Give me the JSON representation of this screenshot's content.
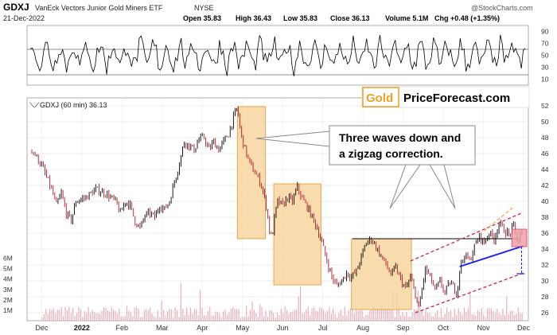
{
  "header": {
    "symbol": "GDXJ",
    "name": "VanEck Vectors Junior Gold Miners ETF",
    "exchange": "NYSE",
    "date": "21-Dec-2022",
    "open": "Open 35.83",
    "high": "High 36.43",
    "low": "Low 35.83",
    "close": "Close 36.13",
    "volume": "Volume 5.1M",
    "change": "Chg +0.48 (+1.35%)",
    "credit": "@StockCharts.com"
  },
  "legend": "GDXJ (60 min) 36.13",
  "logo": {
    "part1": "Gold",
    "part2": "PriceForecast.com"
  },
  "annotation": {
    "line1": "Three waves down and",
    "line2": "a zigzag correction."
  },
  "colors": {
    "box_fill": "#f8d6a0",
    "box_stroke": "#e39a2e",
    "up_candle": "#000000",
    "down_candle": "#b0182a",
    "support_line": "#1a1aff",
    "channel_line": "#cc2244",
    "projection": "#f6a23c",
    "target_box": "#f0a0a8",
    "volume_bar": "#e8b0b8"
  },
  "chart_data": [
    {
      "type": "line",
      "panel": "RSI indicator",
      "y_ticks": [
        10,
        30,
        50,
        70,
        90
      ],
      "guide_levels": [
        30,
        70
      ],
      "ylim": [
        0,
        100
      ]
    },
    {
      "type": "candlestick",
      "panel": "price",
      "x_labels": [
        "Dec",
        "2022",
        "Feb",
        "Mar",
        "Apr",
        "May",
        "Jun",
        "Jul",
        "Aug",
        "Sep",
        "Oct",
        "Nov",
        "Dec"
      ],
      "y_ticks": [
        26,
        28,
        30,
        32,
        34,
        36,
        38,
        40,
        42,
        44,
        46,
        48,
        50,
        52
      ],
      "ylim": [
        25,
        53
      ],
      "xlim": [
        0,
        100
      ],
      "price_path": [
        [
          0,
          46.5
        ],
        [
          2,
          44.5
        ],
        [
          4,
          41.5
        ],
        [
          5,
          39.5
        ],
        [
          6,
          41
        ],
        [
          7,
          38.5
        ],
        [
          8,
          37.6
        ],
        [
          9,
          40
        ],
        [
          11,
          40.5
        ],
        [
          13,
          41.5
        ],
        [
          15,
          41
        ],
        [
          17,
          40
        ],
        [
          18,
          38.5
        ],
        [
          19,
          40
        ],
        [
          20,
          39.5
        ],
        [
          21,
          37.5
        ],
        [
          22,
          36.6
        ],
        [
          23,
          38.2
        ],
        [
          24,
          38.5
        ],
        [
          25,
          38
        ],
        [
          26,
          39.5
        ],
        [
          27,
          39
        ],
        [
          28,
          40
        ],
        [
          29,
          42.5
        ],
        [
          30,
          44.8
        ],
        [
          31,
          47.5
        ],
        [
          33,
          46.5
        ],
        [
          34,
          47.8
        ],
        [
          35,
          48
        ],
        [
          36,
          46.5
        ],
        [
          37,
          47.5
        ],
        [
          38,
          46.5
        ],
        [
          39,
          47.5
        ],
        [
          40,
          48.5
        ],
        [
          41,
          50.5
        ],
        [
          41.8,
          51.8
        ],
        [
          42.5,
          48.5
        ],
        [
          43.5,
          46.2
        ],
        [
          44.5,
          44.5
        ],
        [
          45.5,
          43.5
        ],
        [
          46.5,
          42.3
        ],
        [
          47.2,
          40.8
        ],
        [
          47.8,
          39
        ],
        [
          48.4,
          36
        ],
        [
          48.8,
          35.4
        ],
        [
          49.5,
          38.5
        ],
        [
          50,
          40
        ],
        [
          51,
          39.5
        ],
        [
          52,
          40.5
        ],
        [
          53,
          40
        ],
        [
          54,
          41.8
        ],
        [
          55,
          40.3
        ],
        [
          56,
          39.3
        ],
        [
          57,
          38
        ],
        [
          58,
          36.6
        ],
        [
          59,
          34.8
        ],
        [
          60,
          32.5
        ],
        [
          61,
          30.5
        ],
        [
          62,
          29.4
        ],
        [
          63,
          30
        ],
        [
          64,
          31
        ],
        [
          65,
          30.5
        ],
        [
          66,
          31.2
        ],
        [
          67,
          33
        ],
        [
          68,
          34.8
        ],
        [
          69,
          35.3
        ],
        [
          70,
          34.3
        ],
        [
          71,
          33.1
        ],
        [
          72,
          32.1
        ],
        [
          73,
          30.8
        ],
        [
          74,
          31.6
        ],
        [
          75,
          30.2
        ],
        [
          76,
          29
        ],
        [
          77,
          30.4
        ],
        [
          78,
          28.4
        ],
        [
          78.6,
          26.2
        ],
        [
          79.2,
          28.5
        ],
        [
          80,
          31.5
        ],
        [
          81,
          30.5
        ],
        [
          82,
          28.8
        ],
        [
          83,
          29.9
        ],
        [
          84,
          28.5
        ],
        [
          85,
          29.8
        ],
        [
          86,
          29
        ],
        [
          86.5,
          28.3
        ],
        [
          87,
          31.5
        ],
        [
          88,
          33.3
        ],
        [
          89,
          32.5
        ],
        [
          90,
          34.3
        ],
        [
          91,
          35.6
        ],
        [
          92,
          34.8
        ],
        [
          93,
          36.1
        ],
        [
          94,
          35.3
        ],
        [
          95,
          37.2
        ],
        [
          96,
          36.4
        ],
        [
          97,
          35.8
        ],
        [
          98,
          36.9
        ],
        [
          98.6,
          35.3
        ],
        [
          99,
          34.9
        ],
        [
          99.5,
          36.1
        ],
        [
          100,
          36.1
        ]
      ],
      "horizontal_level": 35.3,
      "target_zone": [
        34.3,
        36.5
      ],
      "projected_low": 30.9
    },
    {
      "type": "bar",
      "panel": "volume",
      "y_ticks": [
        "1M",
        "2M",
        "3M",
        "4M",
        "5M",
        "6M"
      ],
      "ylim": [
        0,
        6.5
      ]
    }
  ]
}
